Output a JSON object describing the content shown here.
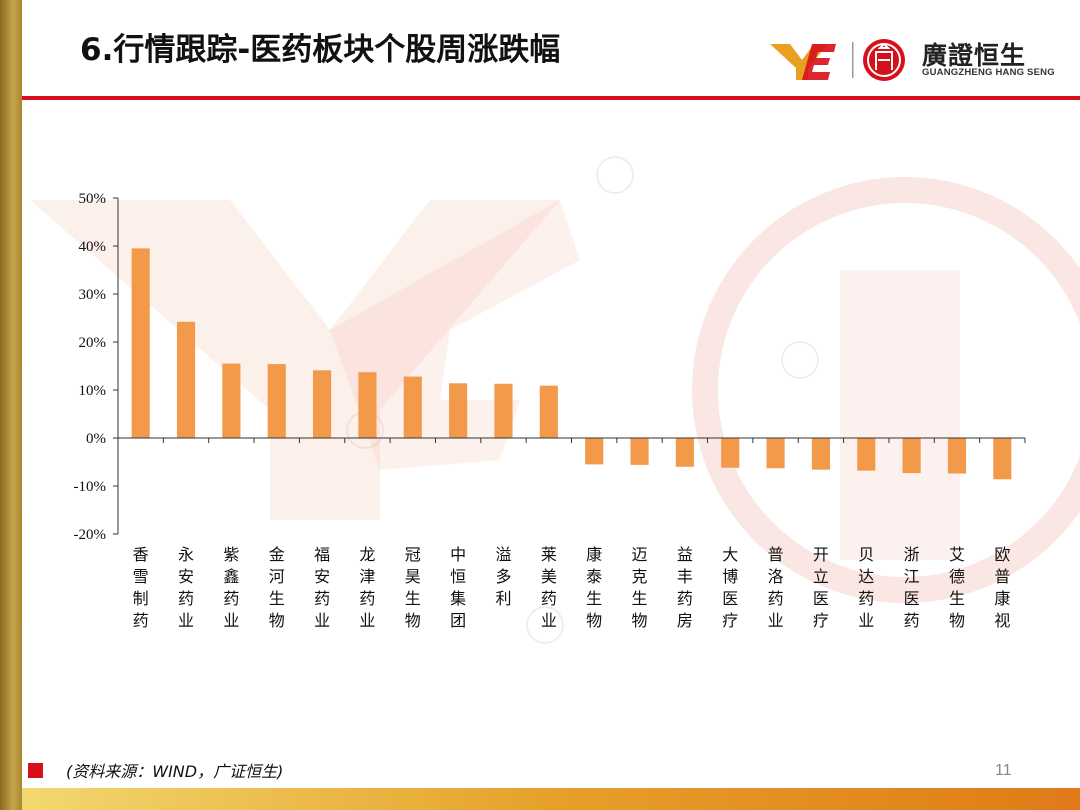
{
  "header": {
    "title": "6.行情跟踪-医药板块个股周涨跌幅",
    "logo_cn": "廣證恒生",
    "logo_en": "GUANGZHENG HANG SENG"
  },
  "footer": {
    "source": "(资料来源：WIND，广证恒生)",
    "page_number": "11"
  },
  "colors": {
    "bar": "#f39a4a",
    "accent_red": "#d6101a",
    "gold": "#c9a64a"
  },
  "chart_data": {
    "type": "bar",
    "categories": [
      "香雪制药",
      "永安药业",
      "紫鑫药业",
      "金河生物",
      "福安药业",
      "龙津药业",
      "冠昊生物",
      "中恒集团",
      "溢多利",
      "莱美药业",
      "康泰生物",
      "迈克生物",
      "益丰药房",
      "大博医疗",
      "普洛药业",
      "开立医疗",
      "贝达药业",
      "浙江医药",
      "艾德生物",
      "欧普康视"
    ],
    "values": [
      39.5,
      24.2,
      15.5,
      15.4,
      14.1,
      13.7,
      12.8,
      11.4,
      11.3,
      10.9,
      -5.5,
      -5.6,
      -6.0,
      -6.2,
      -6.3,
      -6.6,
      -6.8,
      -7.3,
      -7.4,
      -8.6
    ],
    "ylim": [
      -20,
      50
    ],
    "yticks": [
      50,
      40,
      30,
      20,
      10,
      0,
      -10,
      -20
    ],
    "ytick_labels": [
      "50%",
      "40%",
      "30%",
      "20%",
      "10%",
      "0%",
      "-10%",
      "-20%"
    ],
    "title": "",
    "xlabel": "",
    "ylabel": "",
    "grid": false,
    "legend": "none"
  }
}
